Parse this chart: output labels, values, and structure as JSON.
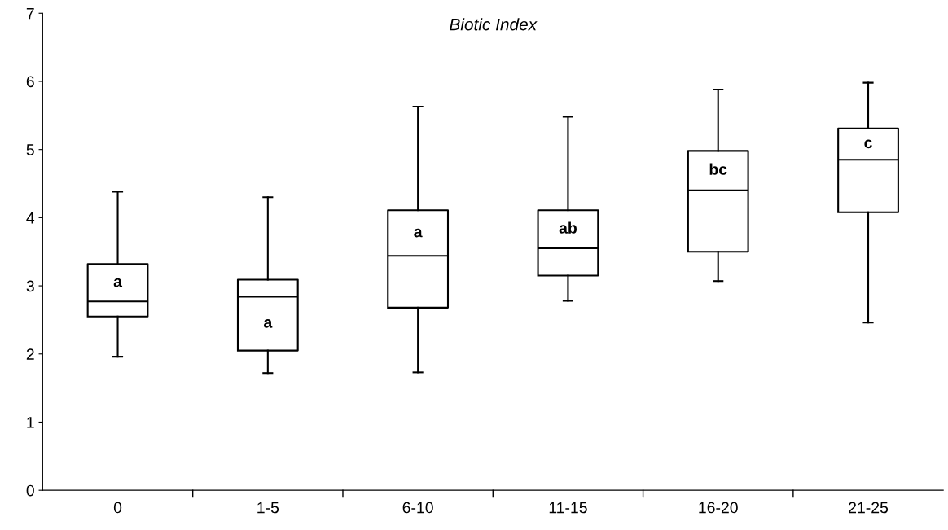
{
  "chart_data": {
    "type": "box",
    "title": "Biotic Index",
    "categories": [
      "0",
      "1-5",
      "6-10",
      "11-15",
      "16-20",
      "21-25"
    ],
    "boxes": [
      {
        "low": 1.96,
        "q1": 2.55,
        "median": 2.77,
        "q3": 3.32,
        "high": 4.38
      },
      {
        "low": 1.72,
        "q1": 2.05,
        "median": 2.84,
        "q3": 3.09,
        "high": 4.3
      },
      {
        "low": 1.73,
        "q1": 2.68,
        "median": 3.44,
        "q3": 4.11,
        "high": 5.63
      },
      {
        "low": 2.78,
        "q1": 3.15,
        "median": 3.55,
        "q3": 4.11,
        "high": 5.48
      },
      {
        "low": 3.07,
        "q1": 3.5,
        "median": 4.4,
        "q3": 4.98,
        "high": 5.88
      },
      {
        "low": 2.46,
        "q1": 4.08,
        "median": 4.85,
        "q3": 5.31,
        "high": 5.98
      }
    ],
    "annotations": [
      "a",
      "a",
      "a",
      "ab",
      "bc",
      "c"
    ],
    "ylim": [
      0,
      7
    ],
    "yticks": [
      0,
      1,
      2,
      3,
      4,
      5,
      6,
      7
    ],
    "grid": false
  }
}
